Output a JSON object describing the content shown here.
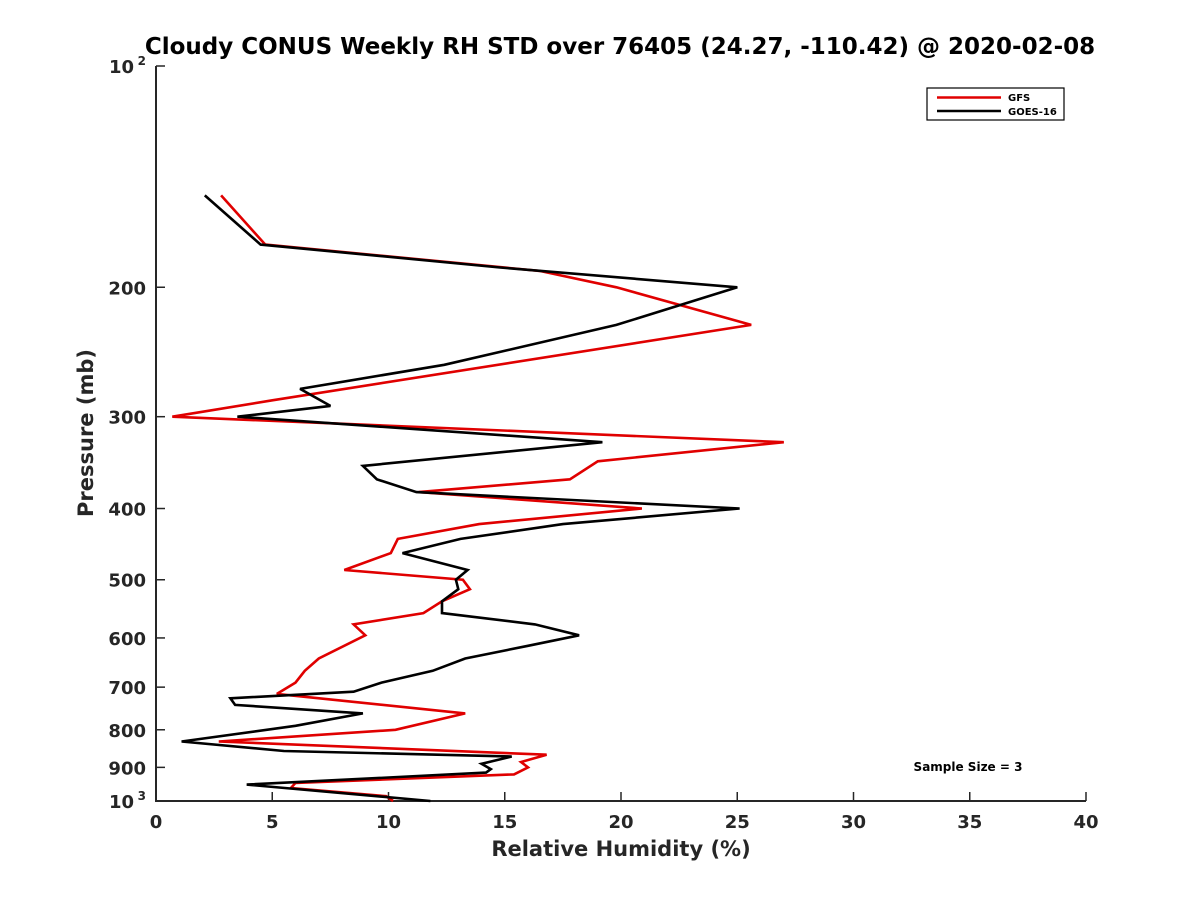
{
  "chart_data": {
    "type": "line",
    "title": "Cloudy CONUS Weekly RH STD over 76405 (24.27, -110.42) @ 2020-02-08",
    "xlabel": "Relative Humidity (%)",
    "ylabel": "Pressure (mb)",
    "xlim": [
      0,
      40
    ],
    "ylim": [
      100,
      1000
    ],
    "y_scale": "log",
    "y_reversed": true,
    "grid": false,
    "legend_position": "top-right",
    "x_ticks": [
      "0",
      "5",
      "10",
      "15",
      "20",
      "25",
      "30",
      "35",
      "40"
    ],
    "y_ticks": [
      {
        "value": 100,
        "base": "10",
        "exp": "2"
      },
      {
        "value": 200,
        "label": "200"
      },
      {
        "value": 300,
        "label": "300"
      },
      {
        "value": 400,
        "label": "400"
      },
      {
        "value": 500,
        "label": "500"
      },
      {
        "value": 600,
        "label": "600"
      },
      {
        "value": 700,
        "label": "700"
      },
      {
        "value": 800,
        "label": "800"
      },
      {
        "value": 900,
        "label": "900"
      },
      {
        "value": 1000,
        "base": "10",
        "exp": "3"
      }
    ],
    "series": [
      {
        "name": "GFS",
        "color": "#e00000",
        "points": [
          [
            2.8,
            150
          ],
          [
            4.7,
            175
          ],
          [
            16.5,
            190
          ],
          [
            19.8,
            200
          ],
          [
            25.6,
            225
          ],
          [
            5.0,
            285
          ],
          [
            0.7,
            300
          ],
          [
            27.0,
            325
          ],
          [
            19.0,
            345
          ],
          [
            17.8,
            365
          ],
          [
            11.3,
            380
          ],
          [
            20.9,
            400
          ],
          [
            13.9,
            420
          ],
          [
            10.4,
            440
          ],
          [
            10.1,
            460
          ],
          [
            8.1,
            485
          ],
          [
            13.2,
            500
          ],
          [
            13.5,
            515
          ],
          [
            12.3,
            535
          ],
          [
            11.5,
            555
          ],
          [
            8.5,
            575
          ],
          [
            9.0,
            595
          ],
          [
            7.0,
            640
          ],
          [
            6.4,
            665
          ],
          [
            6.0,
            690
          ],
          [
            5.2,
            715
          ],
          [
            13.3,
            760
          ],
          [
            10.3,
            800
          ],
          [
            2.7,
            830
          ],
          [
            16.8,
            865
          ],
          [
            15.7,
            885
          ],
          [
            16.0,
            900
          ],
          [
            15.4,
            920
          ],
          [
            6.0,
            945
          ],
          [
            5.8,
            960
          ],
          [
            9.9,
            985
          ],
          [
            10.2,
            1000
          ]
        ]
      },
      {
        "name": "GOES-16",
        "color": "#000000",
        "points": [
          [
            2.1,
            150
          ],
          [
            4.5,
            175
          ],
          [
            14.8,
            188
          ],
          [
            25.0,
            200
          ],
          [
            19.8,
            225
          ],
          [
            12.4,
            255
          ],
          [
            6.2,
            275
          ],
          [
            7.5,
            290
          ],
          [
            3.5,
            300
          ],
          [
            19.2,
            325
          ],
          [
            8.9,
            350
          ],
          [
            9.5,
            365
          ],
          [
            11.2,
            380
          ],
          [
            25.1,
            400
          ],
          [
            17.5,
            420
          ],
          [
            13.1,
            440
          ],
          [
            10.6,
            460
          ],
          [
            13.4,
            485
          ],
          [
            12.9,
            500
          ],
          [
            13.0,
            515
          ],
          [
            12.3,
            535
          ],
          [
            12.3,
            555
          ],
          [
            16.3,
            575
          ],
          [
            18.2,
            595
          ],
          [
            16.0,
            615
          ],
          [
            13.3,
            640
          ],
          [
            11.9,
            665
          ],
          [
            9.7,
            690
          ],
          [
            8.5,
            710
          ],
          [
            3.2,
            725
          ],
          [
            3.4,
            740
          ],
          [
            8.9,
            760
          ],
          [
            6.0,
            790
          ],
          [
            1.1,
            830
          ],
          [
            5.5,
            855
          ],
          [
            15.3,
            870
          ],
          [
            14.0,
            890
          ],
          [
            14.4,
            905
          ],
          [
            14.2,
            915
          ],
          [
            3.9,
            950
          ],
          [
            11.8,
            1000
          ]
        ]
      }
    ],
    "annotation": "Sample Size = 3"
  }
}
